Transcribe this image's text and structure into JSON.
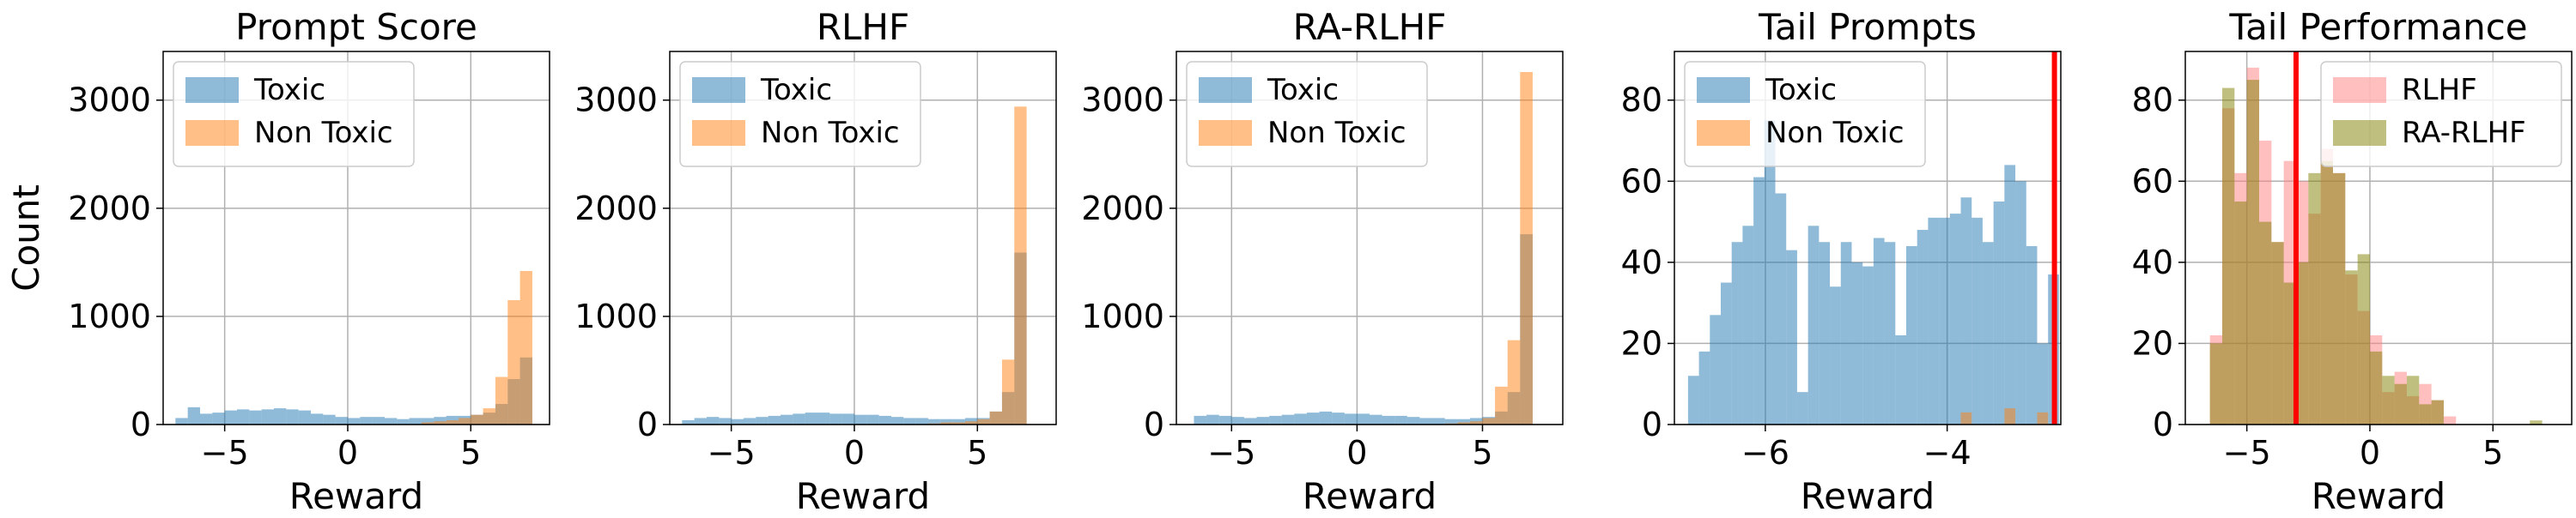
{
  "colors": {
    "toxic": "#1f77b4",
    "non_toxic": "#ff7f0e",
    "rlhf": "#ff7f7f",
    "ra_rlhf": "#808000",
    "threshold": "#ff0000",
    "grid": "#b0b0b0"
  },
  "figure_ylabel": "Count",
  "chart_data": [
    {
      "type": "histogram",
      "title": "Prompt Score",
      "xlabel": "Reward",
      "ylabel": "Count",
      "xlim": [
        -7.5,
        8.2
      ],
      "ylim": [
        0,
        3450
      ],
      "xticks": [
        -5,
        0,
        5
      ],
      "yticks": [
        0,
        1000,
        2000,
        3000
      ],
      "grid": true,
      "legend": "top-left",
      "bin_start": -7.0,
      "bin_width": 0.5,
      "series": [
        {
          "name": "Toxic",
          "color_key": "toxic",
          "values": [
            60,
            160,
            100,
            110,
            130,
            140,
            130,
            140,
            150,
            140,
            130,
            100,
            90,
            70,
            60,
            70,
            70,
            60,
            50,
            60,
            60,
            70,
            80,
            80,
            90,
            110,
            190,
            420,
            620
          ]
        },
        {
          "name": "Non Toxic",
          "color_key": "non_toxic",
          "values": [
            0,
            0,
            0,
            0,
            0,
            0,
            0,
            0,
            0,
            0,
            0,
            0,
            0,
            0,
            0,
            0,
            0,
            0,
            0,
            0,
            20,
            30,
            40,
            60,
            90,
            150,
            440,
            1150,
            1420
          ]
        }
      ]
    },
    {
      "type": "histogram",
      "title": "RLHF",
      "xlabel": "Reward",
      "ylim": [
        0,
        3450
      ],
      "xlim": [
        -7.5,
        8.2
      ],
      "xticks": [
        -5,
        0,
        5
      ],
      "yticks": [
        0,
        1000,
        2000,
        3000
      ],
      "grid": true,
      "legend": "top-left",
      "bin_start": -7.0,
      "bin_width": 0.5,
      "series": [
        {
          "name": "Toxic",
          "color_key": "toxic",
          "values": [
            40,
            60,
            70,
            60,
            50,
            60,
            70,
            80,
            90,
            100,
            110,
            110,
            100,
            100,
            90,
            90,
            80,
            70,
            60,
            60,
            50,
            50,
            50,
            60,
            60,
            120,
            300,
            1590
          ]
        },
        {
          "name": "Non Toxic",
          "color_key": "non_toxic",
          "values": [
            0,
            0,
            0,
            0,
            0,
            0,
            0,
            0,
            0,
            0,
            0,
            0,
            0,
            0,
            0,
            0,
            0,
            0,
            0,
            0,
            10,
            20,
            20,
            30,
            50,
            120,
            600,
            2940
          ]
        }
      ]
    },
    {
      "type": "histogram",
      "title": "RA-RLHF",
      "xlabel": "Reward",
      "ylim": [
        0,
        3450
      ],
      "xlim": [
        -7.2,
        8.2
      ],
      "xticks": [
        -5,
        0,
        5
      ],
      "yticks": [
        0,
        1000,
        2000,
        3000
      ],
      "grid": true,
      "legend": "top-left",
      "bin_start": -6.5,
      "bin_width": 0.5,
      "series": [
        {
          "name": "Toxic",
          "color_key": "toxic",
          "values": [
            80,
            90,
            80,
            70,
            60,
            70,
            80,
            90,
            100,
            110,
            120,
            110,
            100,
            100,
            90,
            80,
            80,
            70,
            60,
            60,
            50,
            50,
            60,
            70,
            120,
            300,
            1760
          ]
        },
        {
          "name": "Non Toxic",
          "color_key": "non_toxic",
          "values": [
            0,
            0,
            0,
            0,
            0,
            0,
            0,
            0,
            0,
            0,
            0,
            0,
            0,
            0,
            0,
            0,
            0,
            0,
            0,
            0,
            10,
            20,
            30,
            60,
            350,
            780,
            3260
          ]
        }
      ]
    },
    {
      "type": "histogram",
      "title": "Tail Prompts",
      "xlabel": "Reward",
      "ylim": [
        0,
        92
      ],
      "xlim": [
        -7.0,
        -2.75
      ],
      "xticks": [
        -6,
        -4
      ],
      "yticks": [
        0,
        20,
        40,
        60,
        80
      ],
      "grid": true,
      "legend": "top-left",
      "bin_start": -6.85,
      "bin_width": 0.12,
      "threshold": -2.82,
      "series": [
        {
          "name": "Toxic",
          "color_key": "toxic",
          "values": [
            12,
            18,
            27,
            35,
            45,
            49,
            61,
            75,
            57,
            43,
            8,
            49,
            45,
            34,
            45,
            40,
            39,
            46,
            45,
            22,
            44,
            48,
            51,
            51,
            52,
            56,
            51,
            45,
            55,
            64,
            60,
            44,
            20,
            37
          ]
        },
        {
          "name": "Non Toxic",
          "color_key": "non_toxic",
          "values": [
            0,
            0,
            0,
            0,
            0,
            0,
            0,
            0,
            0,
            0,
            0,
            0,
            0,
            0,
            0,
            0,
            0,
            0,
            0,
            0,
            0,
            0,
            0,
            0,
            0,
            3,
            0,
            0,
            0,
            4,
            0,
            0,
            3,
            0
          ]
        }
      ]
    },
    {
      "type": "histogram",
      "title": "Tail Performance",
      "xlabel": "Reward",
      "ylim": [
        0,
        92
      ],
      "xlim": [
        -7.5,
        8.2
      ],
      "xticks": [
        -5,
        0,
        5
      ],
      "yticks": [
        0,
        20,
        40,
        60,
        80
      ],
      "grid": true,
      "legend": "top-right",
      "bin_start": -6.5,
      "bin_width": 0.5,
      "threshold": -3.0,
      "series": [
        {
          "name": "RLHF",
          "color_key": "rlhf",
          "values": [
            22,
            78,
            62,
            88,
            70,
            45,
            65,
            60,
            52,
            68,
            62,
            37,
            28,
            22,
            8,
            13,
            7,
            10,
            6,
            2,
            0,
            0,
            0,
            0,
            0,
            0,
            0,
            0
          ]
        },
        {
          "name": "RA-RLHF",
          "color_key": "ra_rlhf",
          "values": [
            20,
            83,
            55,
            85,
            50,
            45,
            35,
            40,
            62,
            65,
            62,
            38,
            42,
            18,
            12,
            10,
            12,
            5,
            6,
            0,
            0,
            0,
            0,
            0,
            0,
            0,
            1,
            0
          ]
        }
      ]
    }
  ]
}
